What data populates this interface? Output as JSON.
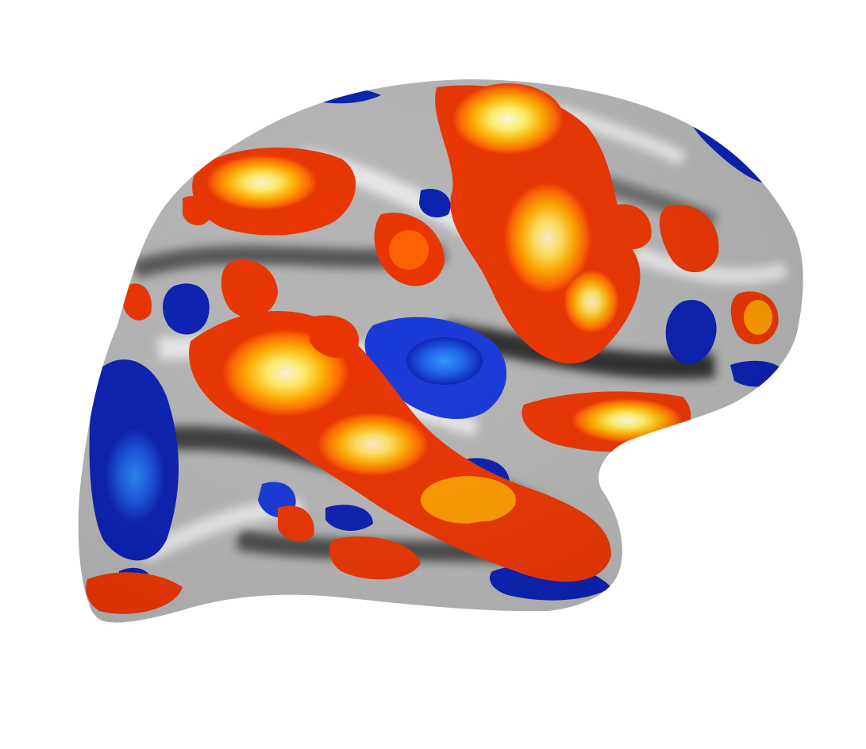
{
  "scene": {
    "background": "#ffffff",
    "subject": "inflated-cortical-surface",
    "hemisphere_view": "lateral"
  },
  "colormap": {
    "positive": [
      "#c41500",
      "#e83400",
      "#ff6a00",
      "#ffb300",
      "#fff26b",
      "#fffbe0"
    ],
    "negative": [
      "#0a1fb0",
      "#1838d8",
      "#1f6bf0",
      "#35a8ff"
    ],
    "surface_curvature": [
      "#3c3c3c",
      "#7a7a7a",
      "#b4b4b4",
      "#e6e6e6"
    ]
  }
}
